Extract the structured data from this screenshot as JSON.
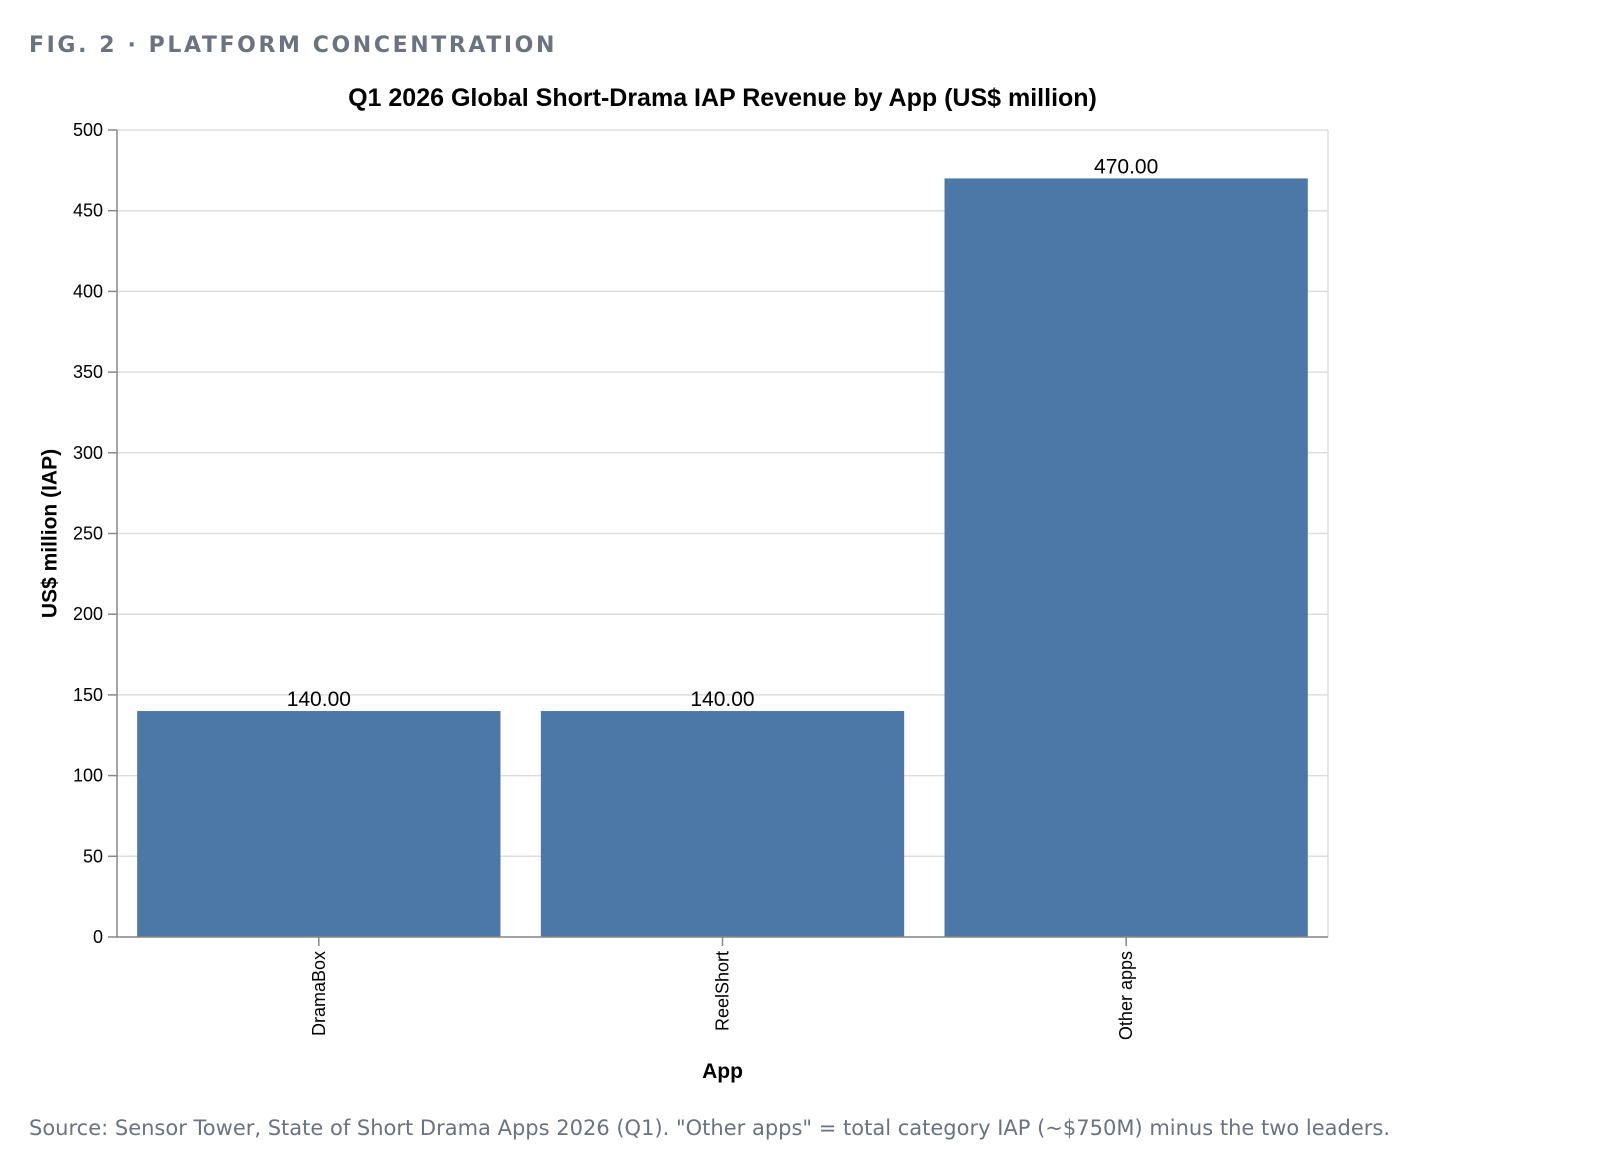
{
  "figure": {
    "label": "FIG. 2 · PLATFORM CONCENTRATION",
    "source_note": "Source: Sensor Tower, State of Short Drama Apps 2026 (Q1). \"Other apps\" = total category IAP (~$750M) minus the two leaders."
  },
  "chart_data": {
    "type": "bar",
    "title": "Q1 2026 Global Short-Drama IAP Revenue by App (US$ million)",
    "xlabel": "App",
    "ylabel": "US$ million (IAP)",
    "categories": [
      "DramaBox",
      "ReelShort",
      "Other apps"
    ],
    "values": [
      140,
      140,
      470
    ],
    "data_labels": [
      "140.00",
      "140.00",
      "470.00"
    ],
    "ylim": [
      0,
      500
    ],
    "yticks": [
      0,
      50,
      100,
      150,
      200,
      250,
      300,
      350,
      400,
      450,
      500
    ],
    "grid": true,
    "bar_color": "#4c78a8",
    "legend": "none"
  }
}
